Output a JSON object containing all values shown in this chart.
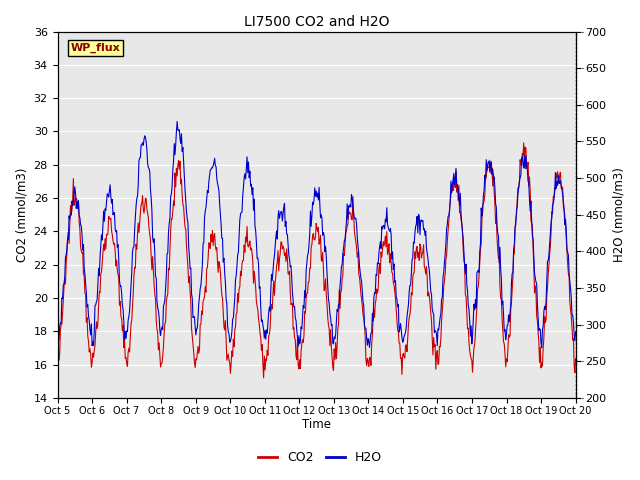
{
  "title": "LI7500 CO2 and H2O",
  "xlabel": "Time",
  "ylabel_left": "CO2 (mmol/m3)",
  "ylabel_right": "H2O (mmol/m3)",
  "annotation": "WP_flux",
  "annotation_color": "#8B0000",
  "annotation_bg": "#FFFF99",
  "xlim": [
    0,
    15
  ],
  "ylim_left": [
    14,
    36
  ],
  "ylim_right": [
    200,
    700
  ],
  "xtick_labels": [
    "Oct 5",
    "Oct 6",
    "Oct 7",
    "Oct 8",
    "Oct 9",
    "Oct 10",
    "Oct 11",
    "Oct 12",
    "Oct 13",
    "Oct 14",
    "Oct 15",
    "Oct 16",
    "Oct 17",
    "Oct 18",
    "Oct 19",
    "Oct 20"
  ],
  "co2_color": "#CC0000",
  "h2o_color": "#0000CC",
  "legend_labels": [
    "CO2",
    "H2O"
  ],
  "plot_bg_color": "#e8e8e8",
  "grid_color": "white",
  "fig_bg": "white"
}
